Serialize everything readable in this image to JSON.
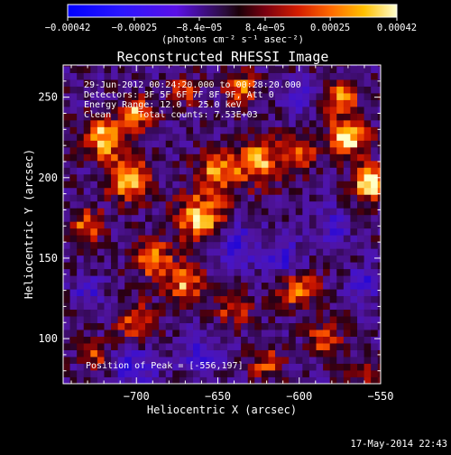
{
  "chart_data": {
    "type": "heatmap",
    "title": "Reconstructed RHESSI Image",
    "xlabel": "Heliocentric X (arcsec)",
    "ylabel": "Heliocentric Y (arcsec)",
    "xlim": [
      -745,
      -550
    ],
    "ylim": [
      72,
      270
    ],
    "x_ticks": [
      -700,
      -650,
      -600,
      -550
    ],
    "x_tick_labels": [
      "−700",
      "−650",
      "−600",
      "−550"
    ],
    "y_ticks": [
      100,
      150,
      200,
      250
    ],
    "y_tick_labels": [
      "100",
      "150",
      "200",
      "250"
    ],
    "colorbar": {
      "range": [
        -0.00042,
        0.00042
      ],
      "ticks": [
        -0.00042,
        -0.00025,
        -8.4e-05,
        8.4e-05,
        0.00025,
        0.00042
      ],
      "tick_labels": [
        "−0.00042",
        "−0.00025",
        "−8.4e−05",
        "8.4e−05",
        "0.00025",
        "0.00042"
      ],
      "units": "(photons cm⁻² s⁻¹ asec⁻²)"
    },
    "annotations": [
      "29-Jun-2012 00:24:20.000 to 00:28:20.000",
      "Detectors: 3F 5F 6F 7F 8F 9F, Att 0",
      "Energy Range: 12.0 - 25.0 keV",
      "Clean     Total counts: 7.53E+03"
    ],
    "peak_label": "Position of Peak = [-556,197]",
    "peak": [
      -556,
      197
    ],
    "grid": false,
    "heat_blobs": [
      [
        -720,
        225,
        12,
        1.0
      ],
      [
        -700,
        240,
        10,
        0.9
      ],
      [
        -705,
        200,
        14,
        0.95
      ],
      [
        -660,
        175,
        16,
        1.0
      ],
      [
        -650,
        205,
        12,
        0.85
      ],
      [
        -625,
        210,
        14,
        0.9
      ],
      [
        -600,
        215,
        10,
        0.85
      ],
      [
        -570,
        225,
        12,
        1.1
      ],
      [
        -556,
        197,
        10,
        1.25
      ],
      [
        -575,
        250,
        10,
        0.9
      ],
      [
        -690,
        150,
        12,
        0.8
      ],
      [
        -670,
        135,
        12,
        0.85
      ],
      [
        -700,
        110,
        12,
        0.75
      ],
      [
        -640,
        120,
        10,
        0.7
      ],
      [
        -600,
        130,
        12,
        0.75
      ],
      [
        -585,
        100,
        10,
        0.7
      ],
      [
        -620,
        85,
        10,
        0.6
      ],
      [
        -730,
        170,
        10,
        0.75
      ],
      [
        -635,
        255,
        10,
        0.8
      ],
      [
        -670,
        255,
        8,
        0.7
      ],
      [
        -725,
        90,
        8,
        0.6
      ],
      [
        -560,
        80,
        8,
        0.55
      ]
    ],
    "cool_blobs": [
      [
        -640,
        160,
        14,
        1.0
      ],
      [
        -610,
        150,
        12,
        0.9
      ],
      [
        -700,
        82,
        14,
        0.9
      ],
      [
        -660,
        90,
        12,
        0.8
      ],
      [
        -580,
        170,
        10,
        0.8
      ],
      [
        -730,
        130,
        10,
        0.7
      ],
      [
        -600,
        250,
        10,
        0.7
      ],
      [
        -560,
        135,
        10,
        0.8
      ]
    ]
  },
  "footer": {
    "timestamp": "17-May-2014 22:43"
  },
  "colors": {
    "background": "#000000",
    "text": "#ffffff"
  }
}
